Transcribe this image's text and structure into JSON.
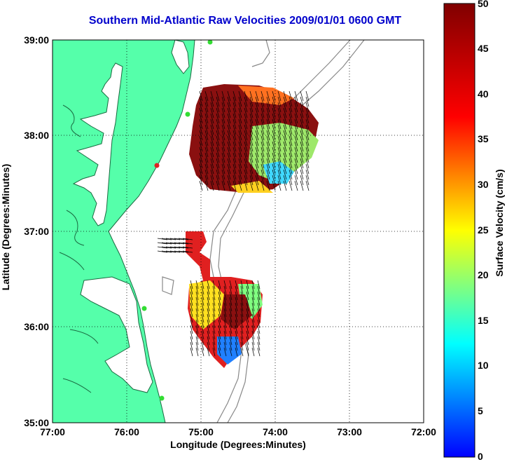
{
  "title": "Southern Mid-Atlantic Raw Velocities 2009/01/01 0600 GMT",
  "axes": {
    "xlabel": "Longitude (Degrees:Minutes)",
    "ylabel": "Latitude (Degrees:Minutes)",
    "xticks": [
      "77:00",
      "76:00",
      "75:00",
      "74:00",
      "73:00",
      "72:00"
    ],
    "yticks": [
      "39:00",
      "38:00",
      "37:00",
      "36:00",
      "35:00"
    ],
    "xlim": [
      -77,
      -72
    ],
    "ylim": [
      35,
      39
    ],
    "grid": "dotted"
  },
  "colorbar": {
    "label": "Surface Velocity (cm/s)",
    "ticks": [
      "50",
      "45",
      "40",
      "35",
      "30",
      "25",
      "20",
      "15",
      "10",
      "5",
      "0"
    ],
    "range": [
      0,
      50
    ],
    "colormap": "jet"
  },
  "colors": {
    "title": "#0000cc",
    "land": "#55ffaa",
    "ocean": "#ffffff",
    "bathymetry": "#888888",
    "vectors": "#000000",
    "station_active": "#33dd33",
    "station_inactive": "#dd2222"
  }
}
